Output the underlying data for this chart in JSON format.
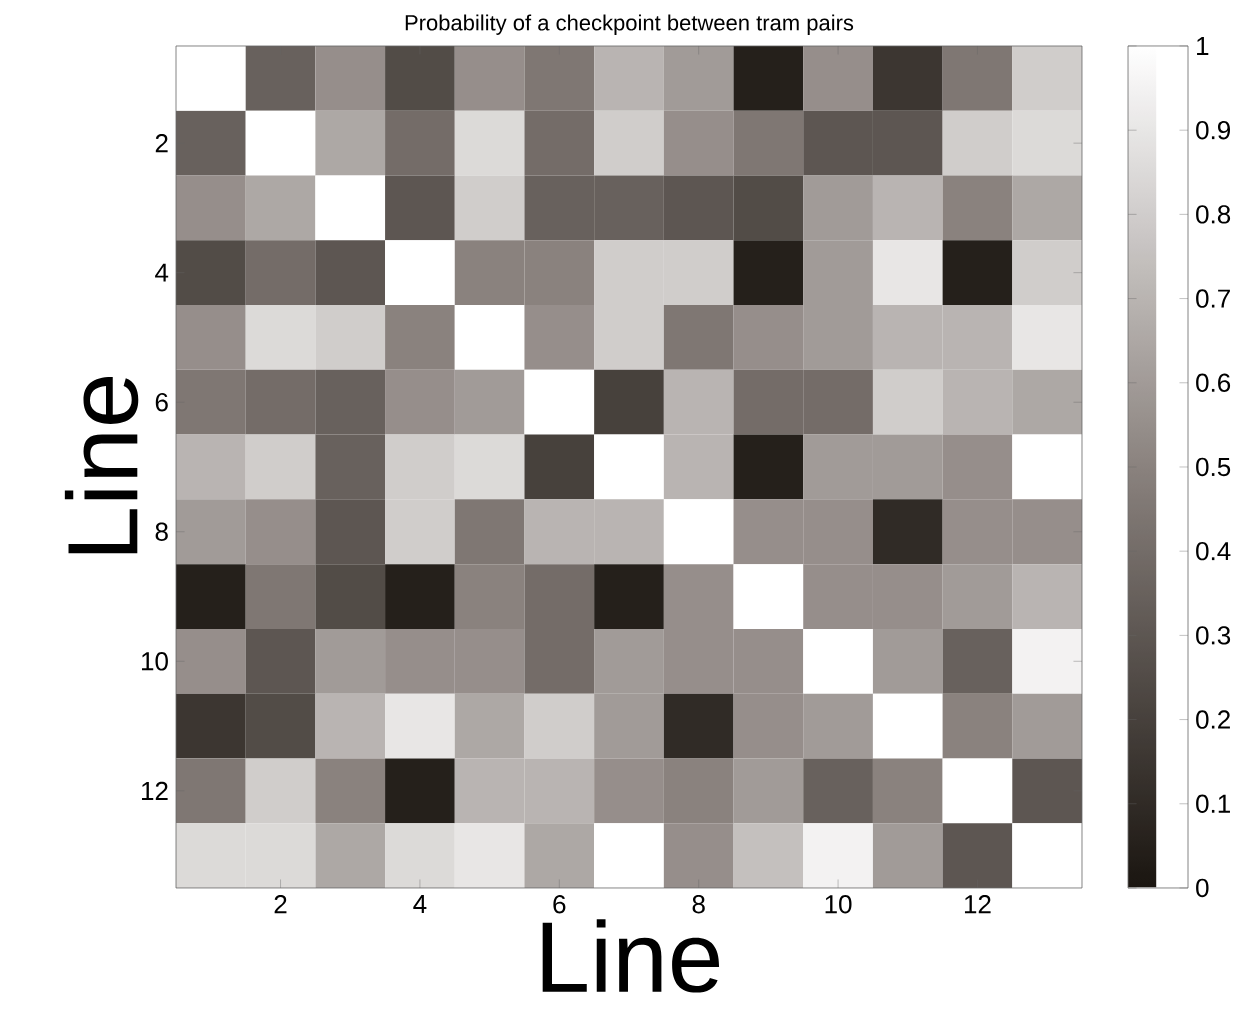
{
  "chart_data": {
    "type": "heatmap",
    "title": "Probability of a checkpoint between tram pairs",
    "xlabel": "Line",
    "ylabel": "Line",
    "categories": [
      null,
      "2",
      null,
      "4",
      null,
      "6",
      null,
      "8",
      null,
      "10",
      null,
      "12",
      null
    ],
    "y_categories": [
      null,
      "2",
      null,
      "4",
      null,
      "6",
      null,
      "8",
      null,
      "10",
      null,
      "12",
      null
    ],
    "cells": [
      [
        1,
        0.35,
        0.55,
        0.25,
        0.55,
        0.45,
        0.7,
        0.6,
        0.05,
        0.55,
        0.15,
        0.45,
        0.8
      ],
      [
        0.35,
        1,
        0.65,
        0.4,
        0.85,
        0.4,
        0.8,
        0.55,
        0.45,
        0.3,
        0.3,
        0.8,
        0.85
      ],
      [
        0.55,
        0.65,
        1,
        0.3,
        0.8,
        0.35,
        0.35,
        0.3,
        0.25,
        0.6,
        0.7,
        0.5,
        0.65
      ],
      [
        0.25,
        0.4,
        0.3,
        1,
        0.5,
        0.5,
        0.8,
        0.8,
        0.05,
        0.6,
        0.9,
        0.05,
        0.8
      ],
      [
        0.55,
        0.85,
        0.8,
        0.5,
        1,
        0.55,
        0.8,
        0.45,
        0.55,
        0.6,
        0.7,
        0.7,
        0.9
      ],
      [
        0.45,
        0.4,
        0.35,
        0.55,
        0.6,
        1,
        0.2,
        0.7,
        0.4,
        0.4,
        0.8,
        0.7,
        0.65
      ],
      [
        0.7,
        0.8,
        0.35,
        0.8,
        0.85,
        0.2,
        1,
        0.7,
        0.05,
        0.6,
        0.6,
        0.55,
        1
      ],
      [
        0.6,
        0.55,
        0.3,
        0.8,
        0.45,
        0.7,
        0.7,
        1,
        0.55,
        0.55,
        0.1,
        0.55,
        0.55
      ],
      [
        0.05,
        0.45,
        0.25,
        0.05,
        0.5,
        0.4,
        0.05,
        0.55,
        1,
        0.55,
        0.55,
        0.6,
        0.7
      ],
      [
        0.55,
        0.3,
        0.6,
        0.55,
        0.55,
        0.4,
        0.6,
        0.55,
        0.55,
        1,
        0.6,
        0.35,
        0.95
      ],
      [
        0.15,
        0.25,
        0.7,
        0.9,
        0.65,
        0.8,
        0.6,
        0.1,
        0.55,
        0.6,
        1,
        0.5,
        0.6
      ],
      [
        0.45,
        0.8,
        0.5,
        0.05,
        0.7,
        0.7,
        0.55,
        0.5,
        0.6,
        0.35,
        0.5,
        1,
        0.3
      ],
      [
        0.85,
        0.85,
        0.65,
        0.85,
        0.9,
        0.65,
        1,
        0.55,
        0.75,
        0.95,
        0.6,
        0.3,
        1
      ]
    ],
    "clim": [
      0,
      1
    ],
    "cticks": [
      0,
      0.1,
      0.2,
      0.3,
      0.4,
      0.5,
      0.6,
      0.7,
      0.8,
      0.9,
      1
    ]
  }
}
